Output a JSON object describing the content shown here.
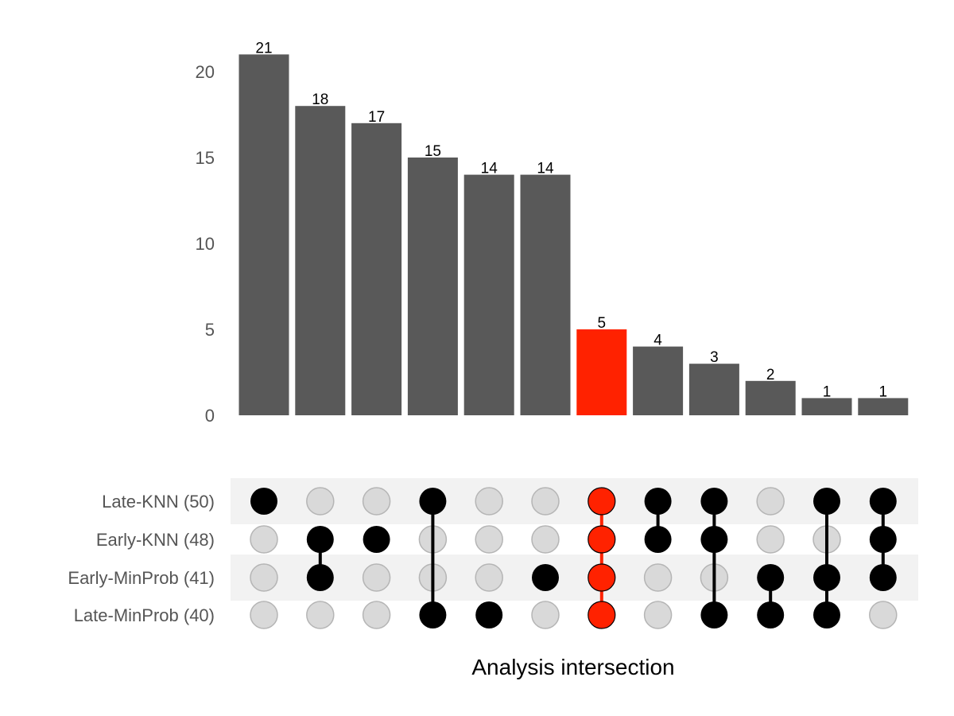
{
  "chart_data": {
    "type": "upset",
    "xlabel": "Analysis intersection",
    "ylim": [
      0,
      21
    ],
    "yticks": [
      0,
      5,
      10,
      15,
      20
    ],
    "sets": [
      {
        "name": "Late-KNN",
        "size": 50,
        "label": "Late-KNN (50)"
      },
      {
        "name": "Early-KNN",
        "size": 48,
        "label": "Early-KNN (48)"
      },
      {
        "name": "Early-MinProb",
        "size": 41,
        "label": "Early-MinProb (41)"
      },
      {
        "name": "Late-MinProb",
        "size": 40,
        "label": "Late-MinProb (40)"
      }
    ],
    "intersections": [
      {
        "sets": [
          "Late-KNN"
        ],
        "value": 21,
        "highlight": false
      },
      {
        "sets": [
          "Early-KNN",
          "Early-MinProb"
        ],
        "value": 18,
        "highlight": false
      },
      {
        "sets": [
          "Early-KNN"
        ],
        "value": 17,
        "highlight": false
      },
      {
        "sets": [
          "Late-KNN",
          "Late-MinProb"
        ],
        "value": 15,
        "highlight": false
      },
      {
        "sets": [
          "Late-MinProb"
        ],
        "value": 14,
        "highlight": false
      },
      {
        "sets": [
          "Early-MinProb"
        ],
        "value": 14,
        "highlight": false
      },
      {
        "sets": [
          "Late-KNN",
          "Early-KNN",
          "Early-MinProb",
          "Late-MinProb"
        ],
        "value": 5,
        "highlight": true
      },
      {
        "sets": [
          "Late-KNN",
          "Early-KNN"
        ],
        "value": 4,
        "highlight": false
      },
      {
        "sets": [
          "Late-KNN",
          "Early-KNN",
          "Late-MinProb"
        ],
        "value": 3,
        "highlight": false
      },
      {
        "sets": [
          "Early-MinProb",
          "Late-MinProb"
        ],
        "value": 2,
        "highlight": false
      },
      {
        "sets": [
          "Late-KNN",
          "Early-MinProb",
          "Late-MinProb"
        ],
        "value": 1,
        "highlight": false
      },
      {
        "sets": [
          "Late-KNN",
          "Early-KNN",
          "Early-MinProb"
        ],
        "value": 1,
        "highlight": false
      }
    ],
    "grid": false,
    "colors": {
      "bar": "#595959",
      "highlight": "#ff2200",
      "dot_active": "#000000",
      "dot_inactive": "#d9d9d9",
      "dot_inactive_stroke": "#b5b5b5",
      "row_band": "#f2f2f2"
    }
  }
}
